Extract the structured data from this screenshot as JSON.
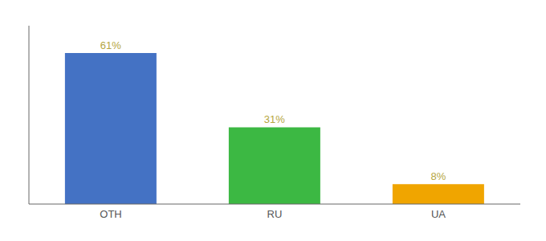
{
  "chart_data": {
    "type": "bar",
    "categories": [
      "OTH",
      "RU",
      "UA"
    ],
    "values": [
      61,
      31,
      8
    ],
    "value_labels": [
      "61%",
      "31%",
      "8%"
    ],
    "colors": [
      "#4472c4",
      "#3cb843",
      "#f0a500"
    ],
    "ylim": [
      0,
      72
    ],
    "tick_labels": "x",
    "data_labels": true
  }
}
